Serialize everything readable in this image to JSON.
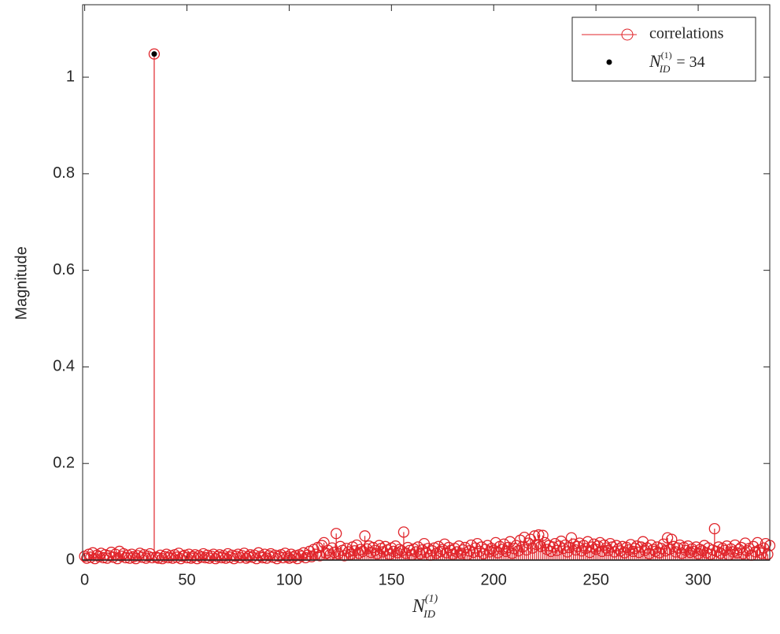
{
  "chart_data": {
    "type": "stem",
    "y_label": "Magnitude",
    "x_label": {
      "base": "N",
      "sub": "ID",
      "sup": "(1)"
    },
    "xlim": [
      -1,
      335
    ],
    "ylim": [
      0,
      1.15
    ],
    "xticks": [
      0,
      50,
      100,
      150,
      200,
      250,
      300
    ],
    "yticks": [
      0,
      0.2,
      0.4,
      0.6,
      0.8,
      1
    ],
    "legend": "top-right",
    "series": [
      {
        "name": "correlations",
        "color": "#e0242a",
        "marker": "circle",
        "x": [
          0,
          1,
          2,
          3,
          4,
          5,
          6,
          7,
          8,
          9,
          10,
          11,
          12,
          13,
          14,
          15,
          16,
          17,
          18,
          19,
          20,
          21,
          22,
          23,
          24,
          25,
          26,
          27,
          28,
          29,
          30,
          31,
          32,
          33,
          34,
          35,
          36,
          37,
          38,
          39,
          40,
          41,
          42,
          43,
          44,
          45,
          46,
          47,
          48,
          49,
          50,
          51,
          52,
          53,
          54,
          55,
          56,
          57,
          58,
          59,
          60,
          61,
          62,
          63,
          64,
          65,
          66,
          67,
          68,
          69,
          70,
          71,
          72,
          73,
          74,
          75,
          76,
          77,
          78,
          79,
          80,
          81,
          82,
          83,
          84,
          85,
          86,
          87,
          88,
          89,
          90,
          91,
          92,
          93,
          94,
          95,
          96,
          97,
          98,
          99,
          100,
          101,
          102,
          103,
          104,
          105,
          106,
          107,
          108,
          109,
          110,
          111,
          112,
          113,
          114,
          115,
          116,
          117,
          118,
          119,
          120,
          121,
          122,
          123,
          124,
          125,
          126,
          127,
          128,
          129,
          130,
          131,
          132,
          133,
          134,
          135,
          136,
          137,
          138,
          139,
          140,
          141,
          142,
          143,
          144,
          145,
          146,
          147,
          148,
          149,
          150,
          151,
          152,
          153,
          154,
          155,
          156,
          157,
          158,
          159,
          160,
          161,
          162,
          163,
          164,
          165,
          166,
          167,
          168,
          169,
          170,
          171,
          172,
          173,
          174,
          175,
          176,
          177,
          178,
          179,
          180,
          181,
          182,
          183,
          184,
          185,
          186,
          187,
          188,
          189,
          190,
          191,
          192,
          193,
          194,
          195,
          196,
          197,
          198,
          199,
          200,
          201,
          202,
          203,
          204,
          205,
          206,
          207,
          208,
          209,
          210,
          211,
          212,
          213,
          214,
          215,
          216,
          217,
          218,
          219,
          220,
          221,
          222,
          223,
          224,
          225,
          226,
          227,
          228,
          229,
          230,
          231,
          232,
          233,
          234,
          235,
          236,
          237,
          238,
          239,
          240,
          241,
          242,
          243,
          244,
          245,
          246,
          247,
          248,
          249,
          250,
          251,
          252,
          253,
          254,
          255,
          256,
          257,
          258,
          259,
          260,
          261,
          262,
          263,
          264,
          265,
          266,
          267,
          268,
          269,
          270,
          271,
          272,
          273,
          274,
          275,
          276,
          277,
          278,
          279,
          280,
          281,
          282,
          283,
          284,
          285,
          286,
          287,
          288,
          289,
          290,
          291,
          292,
          293,
          294,
          295,
          296,
          297,
          298,
          299,
          300,
          301,
          302,
          303,
          304,
          305,
          306,
          307,
          308,
          309,
          310,
          311,
          312,
          313,
          314,
          315,
          316,
          317,
          318,
          319,
          320,
          321,
          322,
          323,
          324,
          325,
          326,
          327,
          328,
          329,
          330,
          331,
          332,
          333,
          334,
          335
        ],
        "values": [
          0.008,
          0.004,
          0.012,
          0.006,
          0.015,
          0.003,
          0.01,
          0.007,
          0.014,
          0.005,
          0.011,
          0.004,
          0.009,
          0.016,
          0.006,
          0.012,
          0.003,
          0.018,
          0.008,
          0.013,
          0.005,
          0.01,
          0.004,
          0.012,
          0.007,
          0.003,
          0.009,
          0.014,
          0.006,
          0.011,
          0.004,
          0.008,
          0.013,
          0.005,
          1.048,
          0.006,
          0.004,
          0.01,
          0.003,
          0.007,
          0.012,
          0.005,
          0.009,
          0.004,
          0.011,
          0.006,
          0.014,
          0.003,
          0.008,
          0.01,
          0.005,
          0.012,
          0.004,
          0.007,
          0.011,
          0.003,
          0.009,
          0.006,
          0.013,
          0.005,
          0.01,
          0.004,
          0.008,
          0.012,
          0.003,
          0.007,
          0.011,
          0.005,
          0.009,
          0.004,
          0.013,
          0.006,
          0.01,
          0.003,
          0.008,
          0.012,
          0.005,
          0.009,
          0.014,
          0.004,
          0.007,
          0.011,
          0.006,
          0.01,
          0.003,
          0.015,
          0.008,
          0.005,
          0.012,
          0.004,
          0.009,
          0.013,
          0.006,
          0.01,
          0.003,
          0.008,
          0.011,
          0.005,
          0.014,
          0.007,
          0.004,
          0.012,
          0.006,
          0.009,
          0.003,
          0.011,
          0.008,
          0.015,
          0.005,
          0.01,
          0.018,
          0.007,
          0.022,
          0.012,
          0.026,
          0.009,
          0.03,
          0.036,
          0.014,
          0.02,
          0.011,
          0.025,
          0.016,
          0.055,
          0.013,
          0.028,
          0.02,
          0.009,
          0.024,
          0.017,
          0.012,
          0.027,
          0.019,
          0.031,
          0.014,
          0.022,
          0.018,
          0.05,
          0.023,
          0.029,
          0.016,
          0.026,
          0.02,
          0.013,
          0.03,
          0.024,
          0.017,
          0.028,
          0.021,
          0.012,
          0.025,
          0.018,
          0.029,
          0.015,
          0.022,
          0.019,
          0.058,
          0.014,
          0.026,
          0.02,
          0.011,
          0.023,
          0.017,
          0.027,
          0.013,
          0.021,
          0.034,
          0.016,
          0.024,
          0.01,
          0.019,
          0.025,
          0.014,
          0.028,
          0.018,
          0.022,
          0.033,
          0.015,
          0.026,
          0.02,
          0.012,
          0.024,
          0.017,
          0.029,
          0.014,
          0.021,
          0.026,
          0.011,
          0.019,
          0.031,
          0.016,
          0.025,
          0.034,
          0.018,
          0.027,
          0.013,
          0.022,
          0.03,
          0.017,
          0.024,
          0.02,
          0.036,
          0.015,
          0.028,
          0.022,
          0.033,
          0.018,
          0.026,
          0.038,
          0.014,
          0.024,
          0.03,
          0.019,
          0.041,
          0.027,
          0.047,
          0.021,
          0.035,
          0.043,
          0.025,
          0.05,
          0.032,
          0.052,
          0.028,
          0.051,
          0.036,
          0.022,
          0.03,
          0.018,
          0.027,
          0.034,
          0.02,
          0.029,
          0.039,
          0.024,
          0.031,
          0.017,
          0.026,
          0.046,
          0.033,
          0.021,
          0.028,
          0.035,
          0.019,
          0.03,
          0.024,
          0.038,
          0.016,
          0.027,
          0.033,
          0.022,
          0.029,
          0.036,
          0.018,
          0.031,
          0.025,
          0.02,
          0.034,
          0.027,
          0.017,
          0.03,
          0.023,
          0.019,
          0.028,
          0.015,
          0.026,
          0.021,
          0.032,
          0.018,
          0.024,
          0.029,
          0.016,
          0.027,
          0.038,
          0.02,
          0.025,
          0.013,
          0.031,
          0.022,
          0.018,
          0.027,
          0.015,
          0.024,
          0.033,
          0.019,
          0.046,
          0.022,
          0.043,
          0.028,
          0.017,
          0.025,
          0.031,
          0.014,
          0.026,
          0.02,
          0.029,
          0.016,
          0.023,
          0.018,
          0.027,
          0.013,
          0.022,
          0.019,
          0.03,
          0.015,
          0.025,
          0.012,
          0.021,
          0.065,
          0.018,
          0.027,
          0.014,
          0.024,
          0.02,
          0.029,
          0.011,
          0.023,
          0.017,
          0.031,
          0.015,
          0.022,
          0.026,
          0.013,
          0.035,
          0.019,
          0.024,
          0.01,
          0.028,
          0.017,
          0.036,
          0.021,
          0.014,
          0.025,
          0.034,
          0.012,
          0.03
        ]
      },
      {
        "name": "N",
        "name_sub": "ID",
        "name_sup": "(1)",
        "name_rest": "= 34",
        "color": "#000000",
        "marker": "dot",
        "x": [
          34
        ],
        "values": [
          1.048
        ]
      }
    ]
  }
}
